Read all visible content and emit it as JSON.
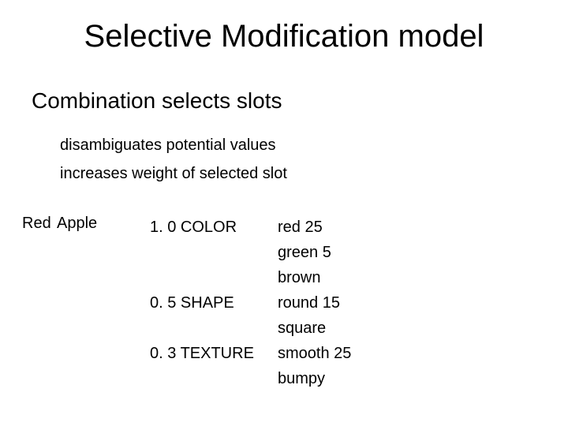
{
  "title": "Selective Modification model",
  "subheading": "Combination selects slots",
  "bullets": [
    "disambiguates potential values",
    "increases weight of selected slot"
  ],
  "example": {
    "label1": "Red",
    "label2": "Apple",
    "slots": [
      {
        "weight": "1. 0",
        "name": "COLOR"
      },
      {
        "weight": "0. 5",
        "name": "SHAPE"
      },
      {
        "weight": "0. 3",
        "name": "TEXTURE"
      }
    ],
    "values": [
      "red 25",
      "green 5",
      "brown",
      "round 15",
      "square",
      "smooth 25",
      "bumpy"
    ]
  },
  "style": {
    "background_color": "#ffffff",
    "text_color": "#000000",
    "font_family": "Arial",
    "title_fontsize": 40,
    "subheading_fontsize": 28,
    "body_fontsize": 20
  }
}
